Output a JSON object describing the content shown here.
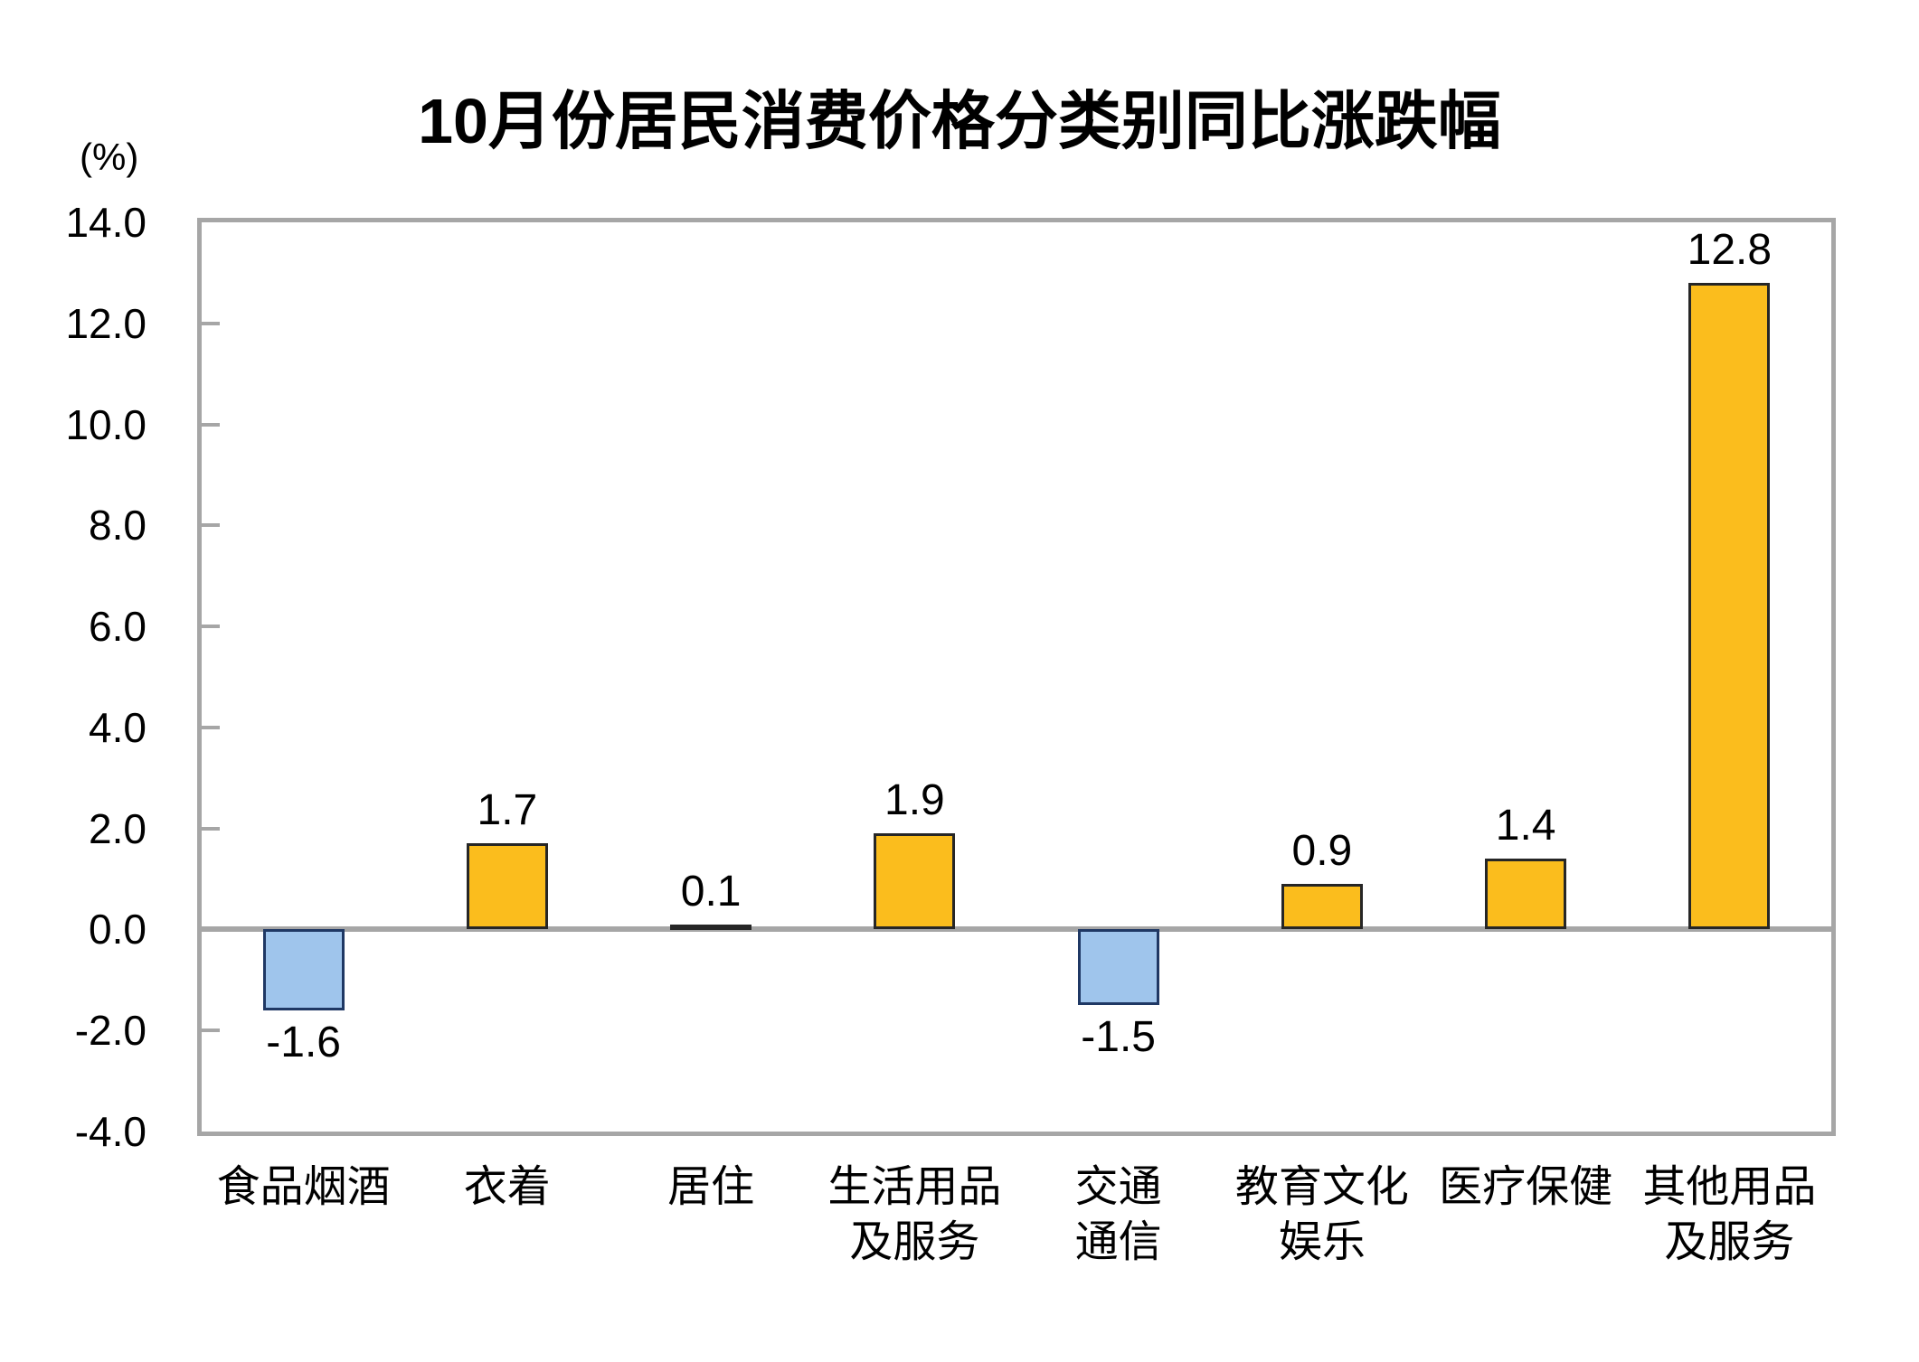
{
  "chart_data": {
    "type": "bar",
    "title": "10月份居民消费价格分类别同比涨跌幅",
    "unit_label": "(%)",
    "xlabel": "",
    "ylabel": "(%)",
    "categories": [
      "食品烟酒",
      "衣着",
      "居住",
      "生活用品及服务",
      "交通通信",
      "教育文化娱乐",
      "医疗保健",
      "其他用品及服务"
    ],
    "category_lines": [
      [
        "食品烟酒"
      ],
      [
        "衣着"
      ],
      [
        "居住"
      ],
      [
        "生活用品",
        "及服务"
      ],
      [
        "交通",
        "通信"
      ],
      [
        "教育文化",
        "娱乐"
      ],
      [
        "医疗保健"
      ],
      [
        "其他用品",
        "及服务"
      ]
    ],
    "values": [
      -1.6,
      1.7,
      0.1,
      1.9,
      -1.5,
      0.9,
      1.4,
      12.8
    ],
    "value_labels": [
      "-1.6",
      "1.7",
      "0.1",
      "1.9",
      "-1.5",
      "0.9",
      "1.4",
      "12.8"
    ],
    "ylim": [
      -4.0,
      14.0
    ],
    "ytick_interval": 2.0,
    "yticks": [
      "14.0",
      "12.0",
      "10.0",
      "8.0",
      "6.0",
      "4.0",
      "2.0",
      "0.0",
      "-2.0",
      "-4.0"
    ],
    "grid": false,
    "legend_position": "none",
    "colors": {
      "positive_bar": "#FBBD1D",
      "positive_bar_border": "#262626",
      "negative_bar": "#9FC5EC",
      "negative_bar_border": "#1F3864",
      "axis_frame": "#A6A6A6",
      "zero_line": "#A6A6A6",
      "text": "#000000",
      "background": "#FFFFFF"
    }
  }
}
